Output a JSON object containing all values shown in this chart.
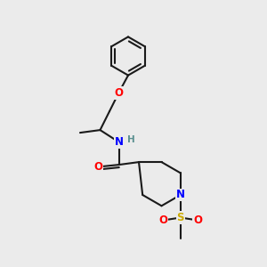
{
  "background_color": "#ebebeb",
  "bond_color": "#1a1a1a",
  "atom_colors": {
    "O": "#ff0000",
    "N": "#0000ff",
    "S": "#ccaa00",
    "H": "#5a9090",
    "C": "#1a1a1a"
  },
  "figsize": [
    3.0,
    3.0
  ],
  "dpi": 100
}
